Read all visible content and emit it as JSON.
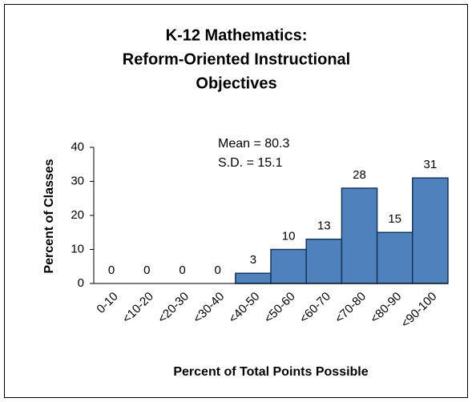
{
  "chart_data": {
    "type": "bar",
    "title": [
      "K-12 Mathematics:",
      "Reform-Oriented Instructional",
      "Objectives"
    ],
    "annotations": [
      "Mean = 80.3",
      "S.D. = 15.1"
    ],
    "x_label": "Percent of Total Points Possible",
    "y_label": "Percent of Classes",
    "categories": [
      "0-10",
      "<10-20",
      "<20-30",
      "<30-40",
      "<40-50",
      "<50-60",
      "<60-70",
      "<70-80",
      "<80-90",
      "<90-100"
    ],
    "values": [
      0,
      0,
      0,
      0,
      3,
      10,
      13,
      28,
      15,
      31
    ],
    "color": "#4f81bd",
    "edge_color": "#17375e",
    "ylim": [
      0,
      40
    ],
    "yticks": [
      0,
      10,
      20,
      30,
      40
    ],
    "grid": false
  }
}
